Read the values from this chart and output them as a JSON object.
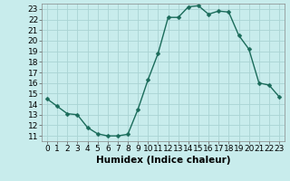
{
  "x": [
    0,
    1,
    2,
    3,
    4,
    5,
    6,
    7,
    8,
    9,
    10,
    11,
    12,
    13,
    14,
    15,
    16,
    17,
    18,
    19,
    20,
    21,
    22,
    23
  ],
  "y": [
    14.5,
    13.8,
    13.1,
    13.0,
    11.8,
    11.2,
    11.0,
    11.0,
    11.15,
    13.5,
    16.3,
    18.8,
    22.2,
    22.2,
    23.2,
    23.3,
    22.5,
    22.8,
    22.7,
    20.5,
    19.2,
    16.0,
    15.8,
    14.7
  ],
  "line_color": "#1a6b5a",
  "marker": "D",
  "markersize": 2.5,
  "linewidth": 1.0,
  "bg_color": "#c8ecec",
  "grid_color": "#aad4d4",
  "xlabel": "Humidex (Indice chaleur)",
  "xlabel_fontsize": 7.5,
  "ylabel_ticks": [
    11,
    12,
    13,
    14,
    15,
    16,
    17,
    18,
    19,
    20,
    21,
    22,
    23
  ],
  "xlim": [
    -0.5,
    23.5
  ],
  "ylim": [
    10.5,
    23.5
  ],
  "tick_fontsize": 6.5
}
